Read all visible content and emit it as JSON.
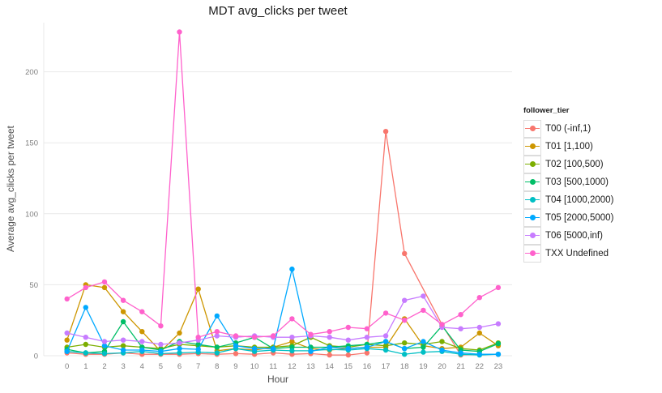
{
  "chart_data": {
    "type": "line",
    "title": "MDT avg_clicks per tweet",
    "xlabel": "Hour",
    "ylabel": "Average avg_clicks per tweet",
    "legend_title": "follower_tier",
    "legend_position": "right",
    "grid": "horizontal-major-only",
    "x": [
      0,
      1,
      2,
      3,
      4,
      5,
      6,
      7,
      8,
      9,
      10,
      11,
      12,
      13,
      14,
      15,
      16,
      17,
      18,
      19,
      20,
      21,
      22,
      23
    ],
    "yticks": [
      0,
      50,
      100,
      150,
      200
    ],
    "ylim": [
      0,
      230
    ],
    "series": [
      {
        "name": "T00 (-inf,1)",
        "color": "#F8766D",
        "values": [
          2,
          1,
          1,
          2,
          1,
          1,
          1,
          1.5,
          1,
          1.5,
          1,
          2,
          1,
          1.5,
          0.5,
          0.5,
          2,
          158,
          72,
          null,
          22,
          0.5,
          1,
          1
        ]
      },
      {
        "name": "T01 [1,100)",
        "color": "#CD9600",
        "values": [
          11,
          50,
          48,
          31,
          17,
          3,
          16,
          47,
          3.5,
          5,
          4,
          6,
          10,
          5,
          4,
          5,
          6,
          6,
          26,
          7,
          5,
          6,
          16,
          7
        ]
      },
      {
        "name": "T02 [100,500)",
        "color": "#7CAE00",
        "values": [
          6,
          8,
          6,
          7,
          6,
          5,
          8,
          7,
          6,
          7,
          6,
          6,
          7,
          13,
          7,
          6,
          8,
          7,
          9,
          8,
          10,
          5,
          4,
          9
        ]
      },
      {
        "name": "T03 [500,1000)",
        "color": "#00BE67",
        "values": [
          4.5,
          2,
          3,
          24,
          6,
          4,
          10,
          8,
          6,
          9,
          13,
          5,
          6,
          6,
          6,
          7,
          8,
          10,
          5,
          6,
          21,
          4,
          3,
          8.5
        ]
      },
      {
        "name": "T04 [1000,2000)",
        "color": "#00BFC4",
        "values": [
          3,
          2,
          1.5,
          2,
          3,
          1.5,
          2,
          2.5,
          2,
          5,
          3,
          4,
          3.5,
          3.5,
          4.5,
          4,
          5,
          4,
          1,
          2.5,
          3,
          1,
          0.5,
          1
        ]
      },
      {
        "name": "T05 [2000,5000)",
        "color": "#00A9FF",
        "values": [
          3,
          34,
          7,
          4,
          4,
          3,
          5,
          4.5,
          28,
          7,
          5,
          5,
          61,
          3,
          6,
          5,
          6,
          10,
          5,
          10,
          4,
          2,
          1,
          1
        ]
      },
      {
        "name": "T06 [5000,inf)",
        "color": "#C77CFF",
        "values": [
          16,
          13,
          10,
          11,
          10,
          8,
          9,
          11,
          14,
          13,
          14,
          13,
          13,
          14,
          13,
          11,
          13,
          14,
          39,
          42,
          20,
          19,
          20,
          22.5
        ]
      },
      {
        "name": "TXX Undefined",
        "color": "#FF61CC",
        "values": [
          40,
          48,
          52,
          39,
          31,
          21,
          228,
          13,
          17,
          14,
          13,
          14,
          26,
          15,
          17,
          20,
          19,
          30,
          25,
          32,
          22,
          29,
          41,
          48
        ]
      }
    ]
  },
  "colors": {
    "background": "#ffffff",
    "grid": "#e9e9e9",
    "axis_text": "#7f7f7f",
    "label_text": "#4d4d4d",
    "title_text": "#1a1a1a",
    "legend_key_border": "#dcdcdc",
    "legend_key_bg": "#ffffff"
  }
}
